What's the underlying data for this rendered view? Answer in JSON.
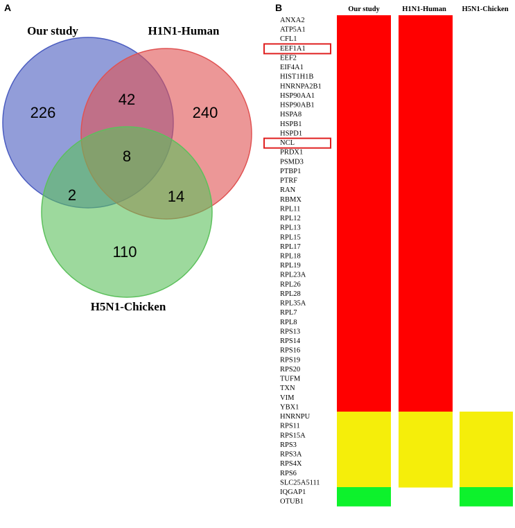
{
  "panel_a": {
    "letter": "A",
    "sets": [
      {
        "name": "Our study",
        "color": "#4a5cc0"
      },
      {
        "name": "H1N1-Human",
        "color": "#e05252"
      },
      {
        "name": "H5N1-Chicken",
        "color": "#5cc05c"
      }
    ],
    "regions": {
      "our_only": "226",
      "h1n1_only": "240",
      "h5n1_only": "110",
      "our_h1n1": "42",
      "our_h5n1": "2",
      "h1n1_h5n1": "14",
      "all_three": "8"
    }
  },
  "panel_b": {
    "letter": "B",
    "columns": [
      "Our study",
      "H1N1-Human",
      "H5N1-Chicken"
    ],
    "colors": {
      "three": "#ff0000",
      "two": "#f5ee0a",
      "one": "#0df22c"
    },
    "highlighted": [
      "EEF1A1",
      "NCL"
    ],
    "highlight_color": "#e02020",
    "genes": [
      {
        "name": "ANXA2",
        "cols": [
          1,
          1,
          0
        ],
        "color": "red"
      },
      {
        "name": "ATP5A1",
        "cols": [
          1,
          1,
          0
        ],
        "color": "red"
      },
      {
        "name": "CFL1",
        "cols": [
          1,
          1,
          0
        ],
        "color": "red"
      },
      {
        "name": "EEF1A1",
        "cols": [
          1,
          1,
          0
        ],
        "color": "red"
      },
      {
        "name": "EEF2",
        "cols": [
          1,
          1,
          0
        ],
        "color": "red"
      },
      {
        "name": "EIF4A1",
        "cols": [
          1,
          1,
          0
        ],
        "color": "red"
      },
      {
        "name": "HIST1H1B",
        "cols": [
          1,
          1,
          0
        ],
        "color": "red"
      },
      {
        "name": "HNRNPA2B1",
        "cols": [
          1,
          1,
          0
        ],
        "color": "red"
      },
      {
        "name": "HSP90AA1",
        "cols": [
          1,
          1,
          0
        ],
        "color": "red"
      },
      {
        "name": "HSP90AB1",
        "cols": [
          1,
          1,
          0
        ],
        "color": "red"
      },
      {
        "name": "HSPA8",
        "cols": [
          1,
          1,
          0
        ],
        "color": "red"
      },
      {
        "name": "HSPB1",
        "cols": [
          1,
          1,
          0
        ],
        "color": "red"
      },
      {
        "name": "HSPD1",
        "cols": [
          1,
          1,
          0
        ],
        "color": "red"
      },
      {
        "name": "NCL",
        "cols": [
          1,
          1,
          0
        ],
        "color": "red"
      },
      {
        "name": "PRDX1",
        "cols": [
          1,
          1,
          0
        ],
        "color": "red"
      },
      {
        "name": "PSMD3",
        "cols": [
          1,
          1,
          0
        ],
        "color": "red"
      },
      {
        "name": "PTBP1",
        "cols": [
          1,
          1,
          0
        ],
        "color": "red"
      },
      {
        "name": "PTRF",
        "cols": [
          1,
          1,
          0
        ],
        "color": "red"
      },
      {
        "name": "RAN",
        "cols": [
          1,
          1,
          0
        ],
        "color": "red"
      },
      {
        "name": "RBMX",
        "cols": [
          1,
          1,
          0
        ],
        "color": "red"
      },
      {
        "name": "RPL11",
        "cols": [
          1,
          1,
          0
        ],
        "color": "red"
      },
      {
        "name": "RPL12",
        "cols": [
          1,
          1,
          0
        ],
        "color": "red"
      },
      {
        "name": "RPL13",
        "cols": [
          1,
          1,
          0
        ],
        "color": "red"
      },
      {
        "name": "RPL15",
        "cols": [
          1,
          1,
          0
        ],
        "color": "red"
      },
      {
        "name": "RPL17",
        "cols": [
          1,
          1,
          0
        ],
        "color": "red"
      },
      {
        "name": "RPL18",
        "cols": [
          1,
          1,
          0
        ],
        "color": "red"
      },
      {
        "name": "RPL19",
        "cols": [
          1,
          1,
          0
        ],
        "color": "red"
      },
      {
        "name": "RPL23A",
        "cols": [
          1,
          1,
          0
        ],
        "color": "red"
      },
      {
        "name": "RPL26",
        "cols": [
          1,
          1,
          0
        ],
        "color": "red"
      },
      {
        "name": "RPL28",
        "cols": [
          1,
          1,
          0
        ],
        "color": "red"
      },
      {
        "name": "RPL35A",
        "cols": [
          1,
          1,
          0
        ],
        "color": "red"
      },
      {
        "name": "RPL7",
        "cols": [
          1,
          1,
          0
        ],
        "color": "red"
      },
      {
        "name": "RPL8",
        "cols": [
          1,
          1,
          0
        ],
        "color": "red"
      },
      {
        "name": "RPS13",
        "cols": [
          1,
          1,
          0
        ],
        "color": "red"
      },
      {
        "name": "RPS14",
        "cols": [
          1,
          1,
          0
        ],
        "color": "red"
      },
      {
        "name": "RPS16",
        "cols": [
          1,
          1,
          0
        ],
        "color": "red"
      },
      {
        "name": "RPS19",
        "cols": [
          1,
          1,
          0
        ],
        "color": "red"
      },
      {
        "name": "RPS20",
        "cols": [
          1,
          1,
          0
        ],
        "color": "red"
      },
      {
        "name": "TUFM",
        "cols": [
          1,
          1,
          0
        ],
        "color": "red"
      },
      {
        "name": "TXN",
        "cols": [
          1,
          1,
          0
        ],
        "color": "red"
      },
      {
        "name": "VIM",
        "cols": [
          1,
          1,
          0
        ],
        "color": "red"
      },
      {
        "name": "YBX1",
        "cols": [
          1,
          1,
          0
        ],
        "color": "red"
      },
      {
        "name": "HNRNPU",
        "cols": [
          1,
          1,
          1
        ],
        "color": "yellow"
      },
      {
        "name": "RPS11",
        "cols": [
          1,
          1,
          1
        ],
        "color": "yellow"
      },
      {
        "name": "RPS15A",
        "cols": [
          1,
          1,
          1
        ],
        "color": "yellow"
      },
      {
        "name": "RPS3",
        "cols": [
          1,
          1,
          1
        ],
        "color": "yellow"
      },
      {
        "name": "RPS3A",
        "cols": [
          1,
          1,
          1
        ],
        "color": "yellow"
      },
      {
        "name": "RPS4X",
        "cols": [
          1,
          1,
          1
        ],
        "color": "yellow"
      },
      {
        "name": "RPS6",
        "cols": [
          1,
          1,
          1
        ],
        "color": "yellow"
      },
      {
        "name": "SLC25A5111",
        "cols": [
          1,
          1,
          1
        ],
        "color": "yellow"
      },
      {
        "name": "IQGAP1",
        "cols": [
          1,
          0,
          1
        ],
        "color": "green"
      },
      {
        "name": "OTUB1",
        "cols": [
          1,
          0,
          1
        ],
        "color": "green"
      }
    ]
  }
}
